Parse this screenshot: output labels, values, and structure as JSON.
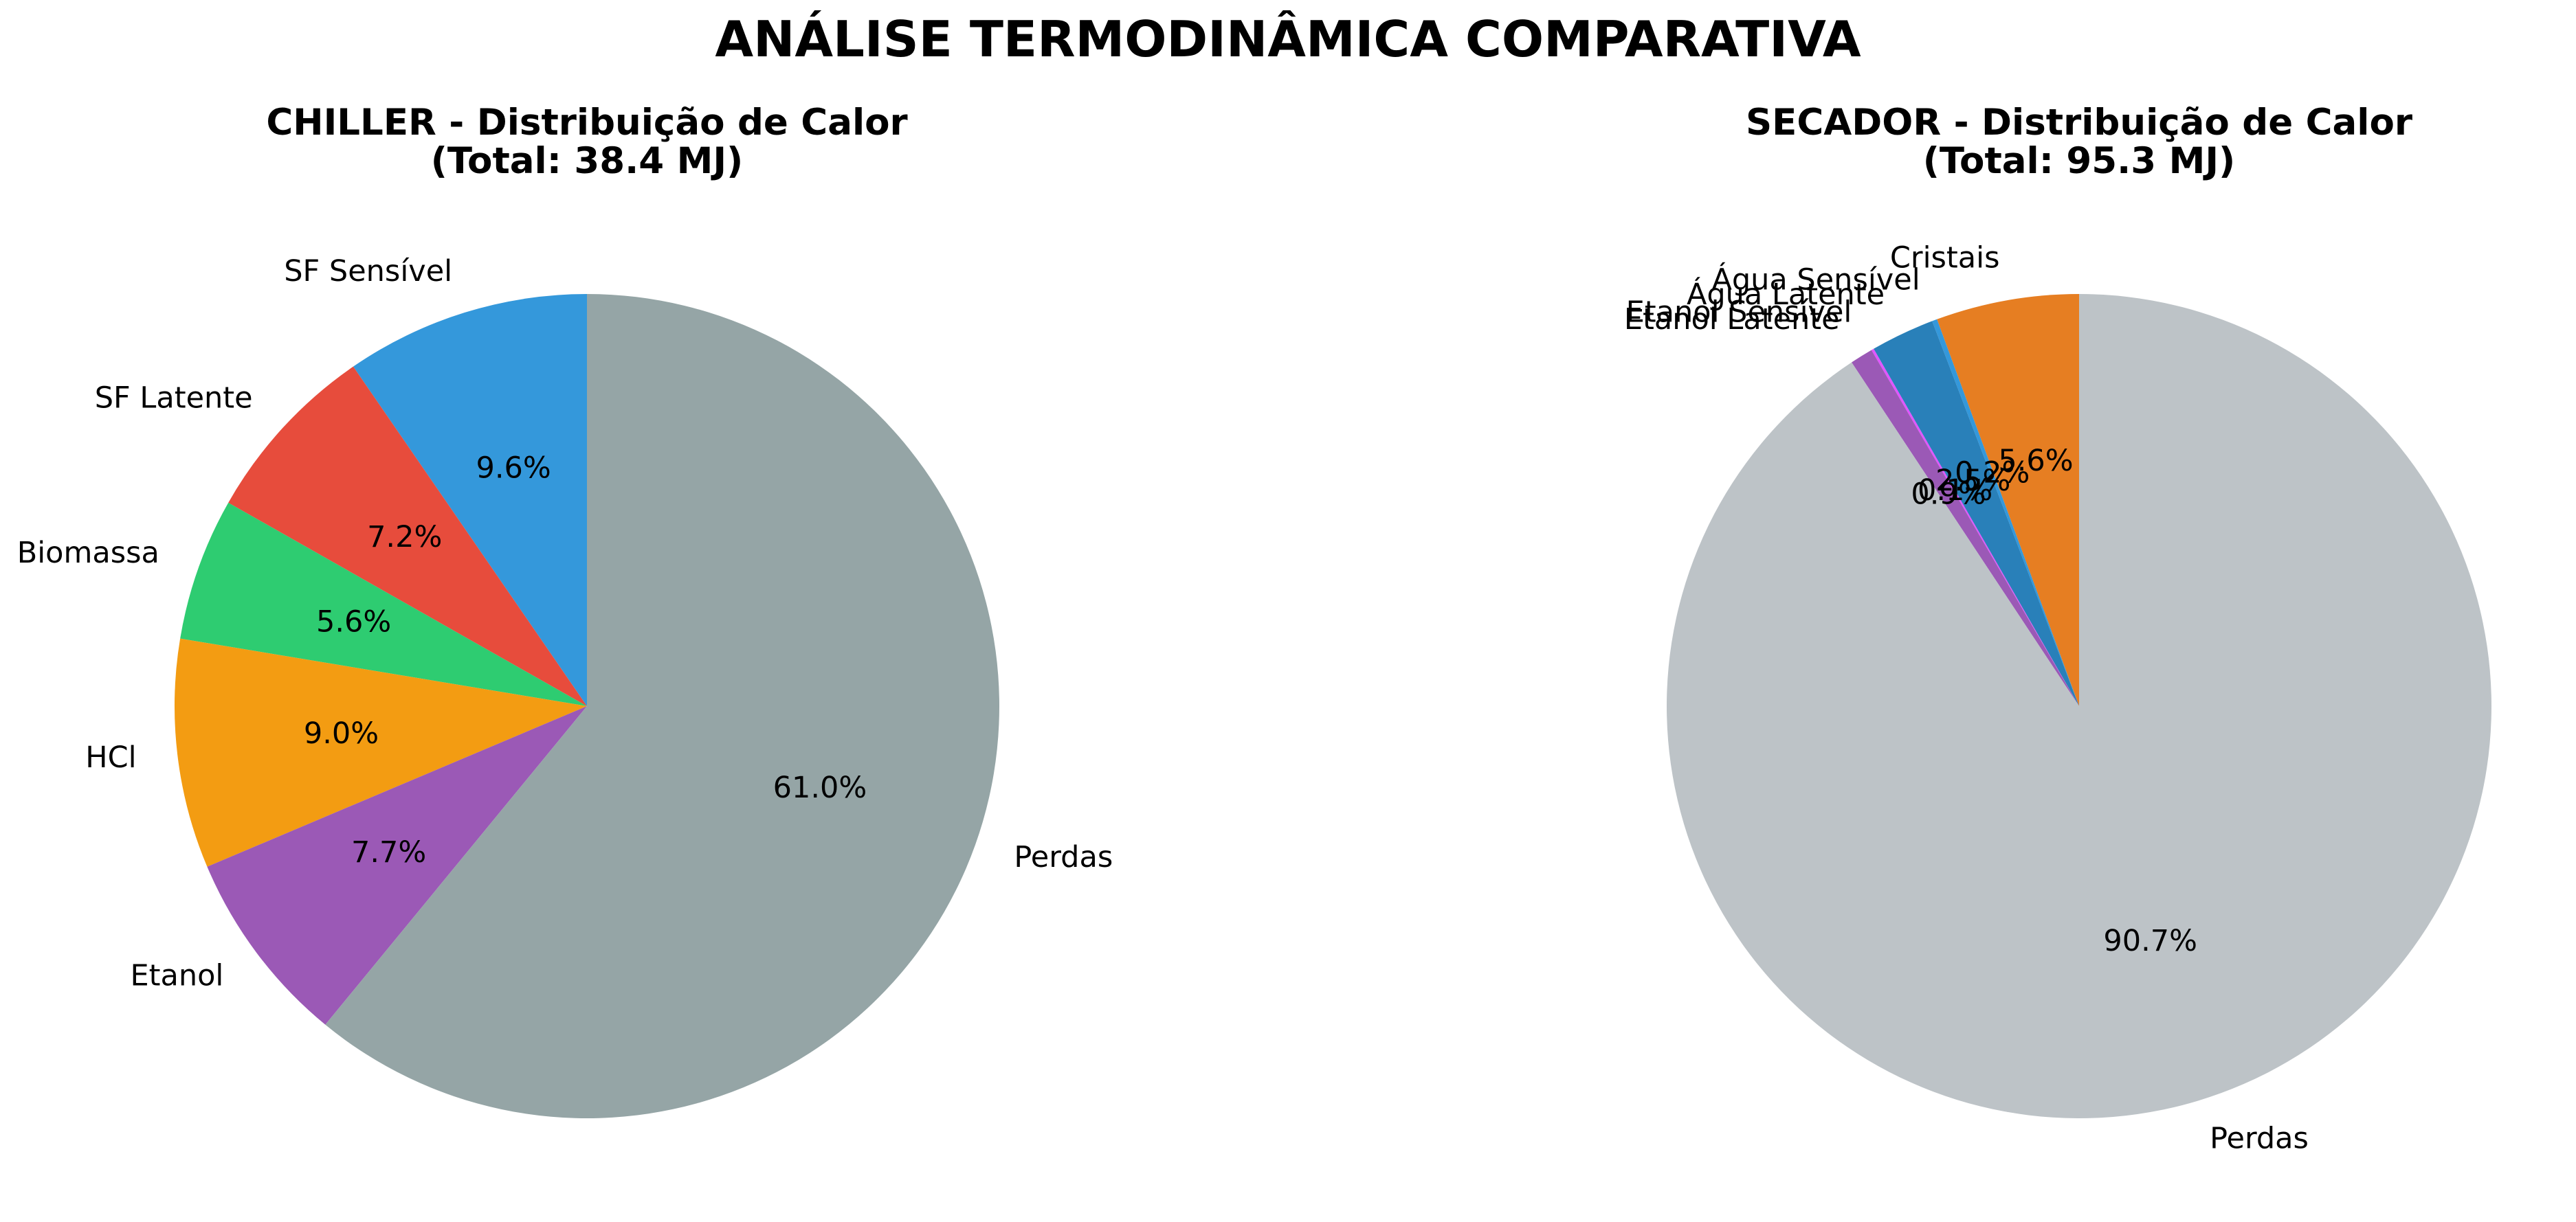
{
  "figure": {
    "title": "ANÁLISE TERMODINÂMICA COMPARATIVA"
  },
  "chart_data": [
    {
      "type": "pie",
      "title_line1": "CHILLER - Distribuição de Calor",
      "title_line2": "(Total: 38.4 MJ)",
      "start_angle_deg": 90,
      "direction": "counterclockwise",
      "slices": [
        {
          "label": "SF Sensível",
          "value": 9.6,
          "pct_label": "9.6%",
          "color": "#3498db"
        },
        {
          "label": "SF Latente",
          "value": 7.2,
          "pct_label": "7.2%",
          "color": "#e74c3c"
        },
        {
          "label": "Biomassa",
          "value": 5.6,
          "pct_label": "5.6%",
          "color": "#2ecc71"
        },
        {
          "label": "HCl",
          "value": 9.0,
          "pct_label": "9.0%",
          "color": "#f39c12"
        },
        {
          "label": "Etanol",
          "value": 7.7,
          "pct_label": "7.7%",
          "color": "#9b59b6"
        },
        {
          "label": "Perdas",
          "value": 61.0,
          "pct_label": "61.0%",
          "color": "#95a5a6"
        }
      ]
    },
    {
      "type": "pie",
      "title_line1": "SECADOR - Distribuição de Calor",
      "title_line2": "(Total: 95.3 MJ)",
      "start_angle_deg": 90,
      "direction": "counterclockwise",
      "slices": [
        {
          "label": "Cristais",
          "value": 5.6,
          "pct_label": "5.6%",
          "color": "#e67e22"
        },
        {
          "label": "Água Sensível",
          "value": 0.2,
          "pct_label": "0.2%",
          "color": "#3498db"
        },
        {
          "label": "Água Latente",
          "value": 2.5,
          "pct_label": "2.5%",
          "color": "#2980b9"
        },
        {
          "label": "Etanol Sensível",
          "value": 0.1,
          "pct_label": "0.1%",
          "color": "#e056fd"
        },
        {
          "label": "Etanol Latente",
          "value": 0.9,
          "pct_label": "0.9%",
          "color": "#9b59b6"
        },
        {
          "label": "Perdas",
          "value": 90.7,
          "pct_label": "90.7%",
          "color": "#bdc3c7"
        }
      ]
    }
  ]
}
